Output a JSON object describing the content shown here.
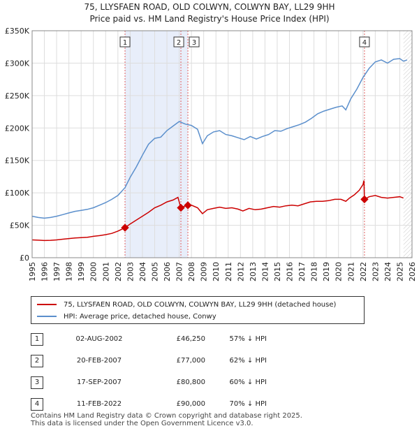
{
  "title_line1": "75, LLYSFAEN ROAD, OLD COLWYN, COLWYN BAY, LL29 9HH",
  "title_line2": "Price paid vs. HM Land Registry's House Price Index (HPI)",
  "legend": {
    "property_label": "75, LLYSFAEN ROAD, OLD COLWYN, COLWYN BAY, LL29 9HH (detached house)",
    "hpi_label": "HPI: Average price, detached house, Conwy"
  },
  "colors": {
    "property": "#cc0000",
    "hpi": "#5b8fcc",
    "shade": "#e8eefa",
    "marker_line": "#e06060"
  },
  "sales": [
    {
      "num": "1",
      "date": "02-AUG-2002",
      "price": "£46,250",
      "hpi_diff": "57% ↓ HPI"
    },
    {
      "num": "2",
      "date": "20-FEB-2007",
      "price": "£77,000",
      "hpi_diff": "62% ↓ HPI"
    },
    {
      "num": "3",
      "date": "17-SEP-2007",
      "price": "£80,800",
      "hpi_diff": "60% ↓ HPI"
    },
    {
      "num": "4",
      "date": "11-FEB-2022",
      "price": "£90,000",
      "hpi_diff": "70% ↓ HPI"
    }
  ],
  "footer": {
    "line1": "Contains HM Land Registry data © Crown copyright and database right 2025.",
    "line2": "This data is licensed under the Open Government Licence v3.0."
  },
  "chart_data": {
    "type": "line",
    "title": "75, LLYSFAEN ROAD, OLD COLWYN, COLWYN BAY, LL29 9HH — Price paid vs. HM Land Registry's House Price Index (HPI)",
    "xlabel": "",
    "ylabel": "",
    "xlim": [
      1995,
      2026
    ],
    "ylim": [
      0,
      350000
    ],
    "x_ticks": [
      "1995",
      "1996",
      "1997",
      "1998",
      "1999",
      "2000",
      "2001",
      "2002",
      "2003",
      "2004",
      "2005",
      "2006",
      "2007",
      "2008",
      "2009",
      "2010",
      "2011",
      "2012",
      "2013",
      "2014",
      "2015",
      "2016",
      "2017",
      "2018",
      "2019",
      "2020",
      "2021",
      "2022",
      "2023",
      "2024",
      "2025",
      "2026"
    ],
    "y_ticks": [
      {
        "value": 0,
        "label": "£0"
      },
      {
        "value": 50000,
        "label": "£50K"
      },
      {
        "value": 100000,
        "label": "£100K"
      },
      {
        "value": 150000,
        "label": "£150K"
      },
      {
        "value": 200000,
        "label": "£200K"
      },
      {
        "value": 250000,
        "label": "£250K"
      },
      {
        "value": 300000,
        "label": "£300K"
      },
      {
        "value": 350000,
        "label": "£350K"
      }
    ],
    "grid": true,
    "shaded_ranges": [
      [
        2002.58,
        2007.71
      ]
    ],
    "hatched_from": 2025.3,
    "series": [
      {
        "name": "75, LLYSFAEN ROAD, OLD COLWYN, COLWYN BAY, LL29 9HH (detached house)",
        "color_key": "property",
        "points": [
          [
            1995.0,
            27500
          ],
          [
            1995.5,
            27000
          ],
          [
            1996.0,
            26500
          ],
          [
            1996.5,
            26800
          ],
          [
            1997.0,
            27500
          ],
          [
            1997.5,
            28500
          ],
          [
            1998.0,
            29500
          ],
          [
            1998.5,
            30500
          ],
          [
            1999.0,
            31000
          ],
          [
            1999.5,
            31500
          ],
          [
            2000.0,
            33000
          ],
          [
            2000.5,
            34000
          ],
          [
            2001.0,
            35500
          ],
          [
            2001.5,
            37500
          ],
          [
            2002.0,
            41000
          ],
          [
            2002.58,
            46250
          ],
          [
            2003.0,
            52000
          ],
          [
            2003.5,
            58000
          ],
          [
            2004.0,
            64000
          ],
          [
            2004.5,
            70000
          ],
          [
            2005.0,
            77000
          ],
          [
            2005.5,
            81000
          ],
          [
            2006.0,
            86000
          ],
          [
            2006.5,
            89000
          ],
          [
            2006.9,
            93000
          ],
          [
            2007.14,
            77000
          ],
          [
            2007.4,
            79000
          ],
          [
            2007.71,
            80800
          ],
          [
            2008.0,
            81000
          ],
          [
            2008.5,
            77000
          ],
          [
            2008.9,
            68000
          ],
          [
            2009.3,
            74000
          ],
          [
            2009.8,
            76000
          ],
          [
            2010.3,
            78000
          ],
          [
            2010.8,
            76000
          ],
          [
            2011.3,
            77000
          ],
          [
            2011.8,
            75000
          ],
          [
            2012.2,
            72000
          ],
          [
            2012.7,
            76000
          ],
          [
            2013.2,
            74000
          ],
          [
            2013.7,
            75000
          ],
          [
            2014.2,
            77000
          ],
          [
            2014.7,
            79000
          ],
          [
            2015.2,
            78000
          ],
          [
            2015.7,
            80000
          ],
          [
            2016.2,
            81000
          ],
          [
            2016.7,
            80000
          ],
          [
            2017.2,
            83000
          ],
          [
            2017.7,
            86000
          ],
          [
            2018.2,
            87000
          ],
          [
            2018.7,
            87000
          ],
          [
            2019.2,
            88000
          ],
          [
            2019.7,
            90000
          ],
          [
            2020.2,
            90000
          ],
          [
            2020.6,
            87000
          ],
          [
            2020.9,
            92000
          ],
          [
            2021.3,
            97000
          ],
          [
            2021.7,
            104000
          ],
          [
            2022.0,
            113000
          ],
          [
            2022.08,
            119000
          ],
          [
            2022.12,
            90000
          ],
          [
            2022.5,
            94000
          ],
          [
            2023.0,
            96000
          ],
          [
            2023.5,
            93000
          ],
          [
            2024.0,
            92000
          ],
          [
            2024.5,
            93000
          ],
          [
            2025.0,
            94000
          ],
          [
            2025.3,
            92000
          ]
        ]
      },
      {
        "name": "HPI: Average price, detached house, Conwy",
        "color_key": "hpi",
        "points": [
          [
            1995.0,
            64000
          ],
          [
            1995.5,
            62000
          ],
          [
            1996.0,
            61000
          ],
          [
            1996.5,
            62000
          ],
          [
            1997.0,
            64000
          ],
          [
            1997.5,
            66500
          ],
          [
            1998.0,
            69000
          ],
          [
            1998.5,
            71500
          ],
          [
            1999.0,
            73000
          ],
          [
            1999.5,
            74500
          ],
          [
            2000.0,
            77000
          ],
          [
            2000.5,
            81000
          ],
          [
            2001.0,
            85000
          ],
          [
            2001.5,
            90000
          ],
          [
            2002.0,
            96000
          ],
          [
            2002.58,
            108000
          ],
          [
            2003.0,
            124000
          ],
          [
            2003.5,
            140000
          ],
          [
            2004.0,
            158000
          ],
          [
            2004.5,
            175000
          ],
          [
            2005.0,
            184000
          ],
          [
            2005.5,
            186000
          ],
          [
            2006.0,
            196000
          ],
          [
            2006.5,
            203000
          ],
          [
            2007.0,
            210000
          ],
          [
            2007.5,
            206000
          ],
          [
            2008.0,
            204000
          ],
          [
            2008.5,
            198000
          ],
          [
            2008.9,
            176000
          ],
          [
            2009.3,
            188000
          ],
          [
            2009.8,
            194000
          ],
          [
            2010.3,
            196000
          ],
          [
            2010.8,
            190000
          ],
          [
            2011.3,
            188000
          ],
          [
            2011.8,
            185000
          ],
          [
            2012.3,
            182000
          ],
          [
            2012.8,
            187000
          ],
          [
            2013.3,
            183000
          ],
          [
            2013.8,
            187000
          ],
          [
            2014.3,
            190000
          ],
          [
            2014.8,
            196000
          ],
          [
            2015.3,
            195000
          ],
          [
            2015.8,
            199000
          ],
          [
            2016.3,
            202000
          ],
          [
            2016.8,
            205000
          ],
          [
            2017.3,
            209000
          ],
          [
            2017.8,
            215000
          ],
          [
            2018.3,
            222000
          ],
          [
            2018.8,
            226000
          ],
          [
            2019.3,
            229000
          ],
          [
            2019.8,
            232000
          ],
          [
            2020.3,
            234000
          ],
          [
            2020.6,
            228000
          ],
          [
            2021.0,
            245000
          ],
          [
            2021.5,
            260000
          ],
          [
            2022.0,
            278000
          ],
          [
            2022.5,
            292000
          ],
          [
            2023.0,
            302000
          ],
          [
            2023.5,
            305000
          ],
          [
            2024.0,
            300000
          ],
          [
            2024.5,
            306000
          ],
          [
            2025.0,
            307000
          ],
          [
            2025.3,
            303000
          ],
          [
            2025.6,
            305000
          ]
        ]
      }
    ],
    "sale_points": [
      {
        "label": "1",
        "x": 2002.58,
        "y": 46250
      },
      {
        "label": "2",
        "x": 2007.14,
        "y": 77000
      },
      {
        "label": "3",
        "x": 2007.71,
        "y": 80800
      },
      {
        "label": "4",
        "x": 2022.12,
        "y": 90000
      }
    ]
  }
}
